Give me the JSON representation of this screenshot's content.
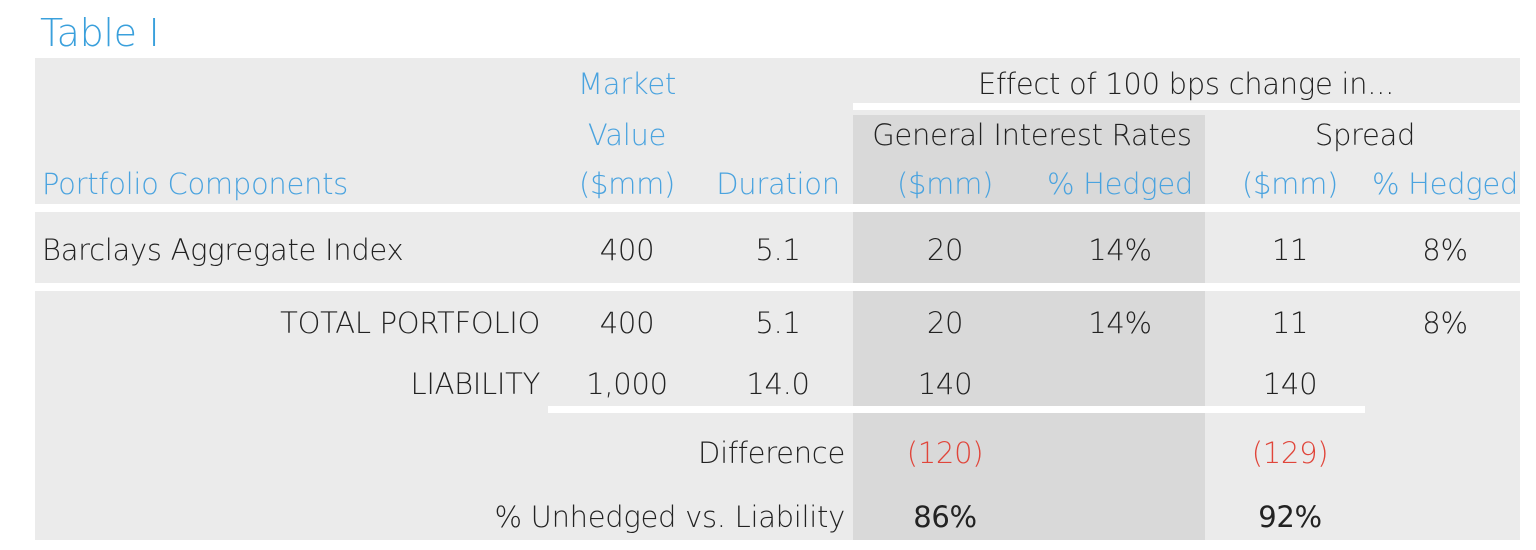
{
  "title": "Table I",
  "header": {
    "market_value": [
      "Market",
      "Value",
      "($mm)"
    ],
    "duration": "Duration",
    "portfolio_components": "Portfolio Components",
    "effect": "Effect of 100 bps change in...",
    "general_interest_rates": "General Interest Rates",
    "spread": "Spread",
    "gir_mm": "($mm)",
    "gir_hedged": "% Hedged",
    "spread_mm": "($mm)",
    "spread_hedged": "% Hedged"
  },
  "rows": {
    "barclays": {
      "label": "Barclays Aggregate Index",
      "market_value": "400",
      "duration": "5.1",
      "gir_mm": "20",
      "gir_hedged": "14%",
      "spread_mm": "11",
      "spread_hedged": "8%"
    },
    "total": {
      "label": "TOTAL PORTFOLIO",
      "market_value": "400",
      "duration": "5.1",
      "gir_mm": "20",
      "gir_hedged": "14%",
      "spread_mm": "11",
      "spread_hedged": "8%"
    },
    "liability": {
      "label": "LIABILITY",
      "market_value": "1,000",
      "duration": "14.0",
      "gir_mm": "140",
      "spread_mm": "140"
    },
    "difference": {
      "label": "Difference",
      "gir_mm": "(120)",
      "spread_mm": "(129)"
    },
    "unhedged": {
      "label": "% Unhedged vs. Liability",
      "gir": "86%",
      "spread": "92%"
    }
  }
}
